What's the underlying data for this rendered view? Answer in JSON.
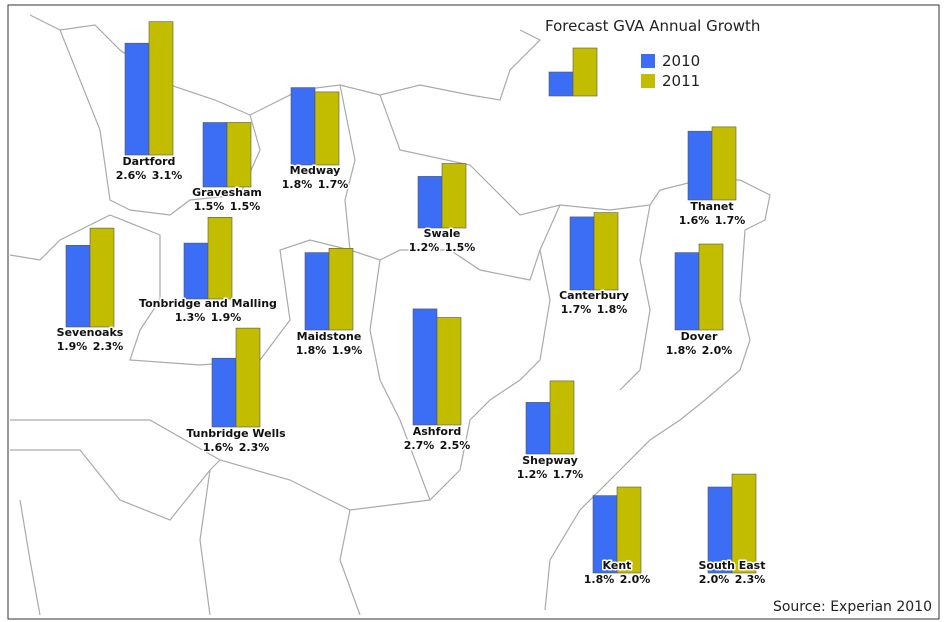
{
  "title": "Forecast GVA Annual Growth",
  "legend": [
    {
      "name": "2010",
      "color": "#3b6ef5"
    },
    {
      "name": "2011",
      "color": "#c2bd00"
    }
  ],
  "regions": [
    {
      "name": "Dartford",
      "values": [
        2.6,
        3.1
      ],
      "value_labels": [
        "2.6%",
        "3.1%"
      ]
    },
    {
      "name": "Gravesham",
      "values": [
        1.5,
        1.5
      ],
      "value_labels": [
        "1.5%",
        "1.5%"
      ]
    },
    {
      "name": "Medway",
      "values": [
        1.8,
        1.7
      ],
      "value_labels": [
        "1.8%",
        "1.7%"
      ]
    },
    {
      "name": "Swale",
      "values": [
        1.2,
        1.5
      ],
      "value_labels": [
        "1.2%",
        "1.5%"
      ]
    },
    {
      "name": "Thanet",
      "values": [
        1.6,
        1.7
      ],
      "value_labels": [
        "1.6%",
        "1.7%"
      ]
    },
    {
      "name": "Sevenoaks",
      "values": [
        1.9,
        2.3
      ],
      "value_labels": [
        "1.9%",
        "2.3%"
      ]
    },
    {
      "name": "Tonbridge and Malling",
      "values": [
        1.3,
        1.9
      ],
      "value_labels": [
        "1.3%",
        "1.9%"
      ]
    },
    {
      "name": "Maidstone",
      "values": [
        1.8,
        1.9
      ],
      "value_labels": [
        "1.8%",
        "1.9%"
      ]
    },
    {
      "name": "Canterbury",
      "values": [
        1.7,
        1.8
      ],
      "value_labels": [
        "1.7%",
        "1.8%"
      ]
    },
    {
      "name": "Dover",
      "values": [
        1.8,
        2.0
      ],
      "value_labels": [
        "1.8%",
        "2.0%"
      ]
    },
    {
      "name": "Tunbridge Wells",
      "values": [
        1.6,
        2.3
      ],
      "value_labels": [
        "1.6%",
        "2.3%"
      ]
    },
    {
      "name": "Ashford",
      "values": [
        2.7,
        2.5
      ],
      "value_labels": [
        "2.7%",
        "2.5%"
      ]
    },
    {
      "name": "Shepway",
      "values": [
        1.2,
        1.7
      ],
      "value_labels": [
        "1.2%",
        "1.7%"
      ]
    },
    {
      "name": "Kent",
      "values": [
        1.8,
        2.0
      ],
      "value_labels": [
        "1.8%",
        "2.0%"
      ]
    },
    {
      "name": "South East",
      "values": [
        2.0,
        2.3
      ],
      "value_labels": [
        "2.0%",
        "2.3%"
      ]
    }
  ],
  "source": "Source: Experian 2010"
}
